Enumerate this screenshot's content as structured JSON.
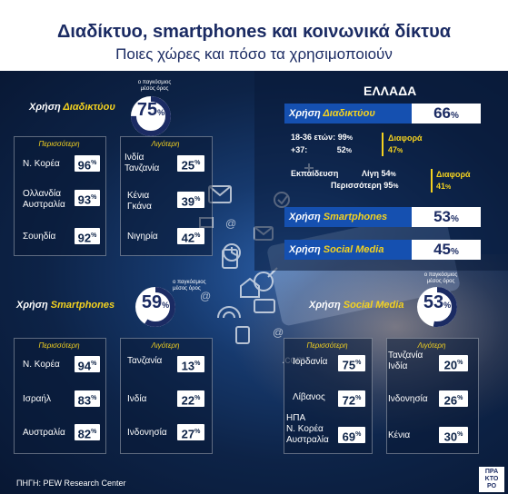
{
  "title": "Διαδίκτυο, smartphones και κοινωνικά δίκτυα",
  "subtitle": "Ποιες χώρες και πόσο τα χρησιμοποιούν",
  "global_label": "ο παγκόσμιος\nμέσος όρος",
  "internet": {
    "label_prefix": "Χρήση ",
    "label_main": "Διαδικτύου",
    "global_avg": "75",
    "more_head": "Περισσότερη",
    "less_head": "Λιγότερη",
    "more": [
      {
        "name": "Ν. Κορέα",
        "value": "96"
      },
      {
        "name": "Ολλανδία\nΑυστραλία",
        "value": "93"
      },
      {
        "name": "Σουηδία",
        "value": "92"
      }
    ],
    "less": [
      {
        "name": "Ινδία\nΤανζανία",
        "value": "25"
      },
      {
        "name": "Κένια\nΓκάνα",
        "value": "39"
      },
      {
        "name": "Νιγηρία",
        "value": "42"
      }
    ]
  },
  "smartphones": {
    "label_prefix": "Χρήση ",
    "label_main": "Smartphones",
    "global_avg": "59",
    "more_head": "Περισσότερη",
    "less_head": "Λιγότερη",
    "more": [
      {
        "name": "Ν. Κορέα",
        "value": "94"
      },
      {
        "name": "Ισραήλ",
        "value": "83"
      },
      {
        "name": "Αυστραλία",
        "value": "82"
      }
    ],
    "less": [
      {
        "name": "Τανζανία",
        "value": "13"
      },
      {
        "name": "Ινδία",
        "value": "22"
      },
      {
        "name": "Ινδονησία",
        "value": "27"
      }
    ]
  },
  "social": {
    "label_prefix": "Χρήση ",
    "label_main": "Social Media",
    "global_avg": "53",
    "more_head": "Περισσότερη",
    "less_head": "Λιγότερη",
    "more": [
      {
        "name": "Ιορδανία",
        "value": "75"
      },
      {
        "name": "Λίβανος",
        "value": "72"
      },
      {
        "name": "ΗΠΑ\nΝ. Κορέα\nΑυστραλία",
        "value": "69"
      }
    ],
    "less": [
      {
        "name": "Τανζανία\nΙνδία",
        "value": "20"
      },
      {
        "name": "Ινδονησία",
        "value": "26"
      },
      {
        "name": "Κένια",
        "value": "30"
      }
    ]
  },
  "greece": {
    "title": "ΕΛΛΑΔΑ",
    "internet_prefix": "Χρήση ",
    "internet_main": "Διαδικτύου",
    "internet_value": "66",
    "age_line1_label": "18-36 ετών:",
    "age_line1_value": "99",
    "age_line2_label": "+37:",
    "age_line2_value": "52",
    "diff_label": "Διαφορά",
    "age_diff": "47",
    "edu_label": "Εκπαίδευση",
    "edu_low_label": "Λίγη",
    "edu_low_value": "54",
    "edu_high_label": "Περισσότερη",
    "edu_high_value": "95",
    "edu_diff": "41",
    "smart_prefix": "Χρήση ",
    "smart_main": "Smartphones",
    "smart_value": "53",
    "social_prefix": "Χρήση ",
    "social_main": "Social Media",
    "social_value": "45"
  },
  "pct_sign": "%",
  "source": "ΠΗΓΗ: PEW Research Center",
  "logo": "ΠΡΑ\nΚΤΟ\nΡΟ",
  "colors": {
    "accent": "#f4d21f",
    "navy": "#1b2b63",
    "bar": "#1550b0"
  }
}
